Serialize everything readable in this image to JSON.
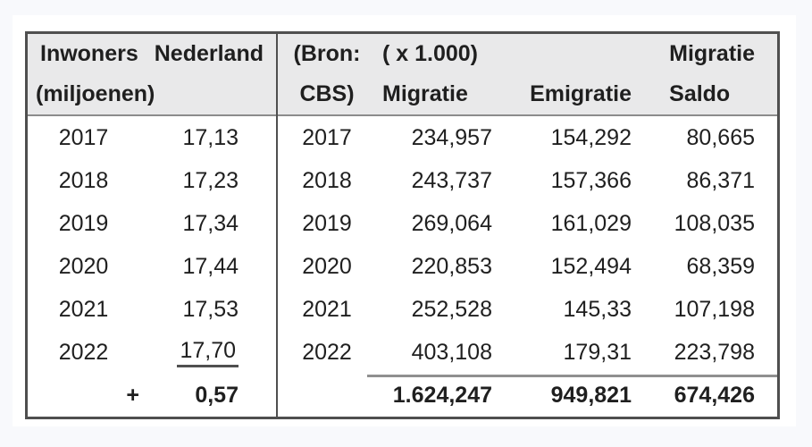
{
  "colors": {
    "page_bg": "#f8f9fc",
    "panel_bg": "#ffffff",
    "header_bg": "#e9e9ea",
    "border": "#4f4f4f",
    "header_rule": "#8c8c8c",
    "sum_rule": "#909090",
    "text": "#1f1f1f"
  },
  "left_table": {
    "header": {
      "line1_left": "Inwoners",
      "line1_right": "Nederland",
      "line2": "(miljoenen)"
    },
    "rows": [
      {
        "year": "2017",
        "value": "17,13"
      },
      {
        "year": "2018",
        "value": "17,23"
      },
      {
        "year": "2019",
        "value": "17,34"
      },
      {
        "year": "2020",
        "value": "17,44"
      },
      {
        "year": "2021",
        "value": "17,53"
      },
      {
        "year": "2022",
        "value": "17,70"
      }
    ],
    "total": {
      "operator": "+",
      "value": "0,57"
    }
  },
  "right_table": {
    "header": {
      "source_line1": "(Bron:",
      "source_line2": "CBS)",
      "unit": "( x 1.000)",
      "migratie_label": "Migratie",
      "emigratie_label": "Emigratie",
      "saldo_line1": "Migratie",
      "saldo_line2": "Saldo"
    },
    "rows": [
      {
        "year": "2017",
        "migratie": "234,957",
        "emigratie": "154,292",
        "saldo": "80,665"
      },
      {
        "year": "2018",
        "migratie": "243,737",
        "emigratie": "157,366",
        "saldo": "86,371"
      },
      {
        "year": "2019",
        "migratie": "269,064",
        "emigratie": "161,029",
        "saldo": "108,035"
      },
      {
        "year": "2020",
        "migratie": "220,853",
        "emigratie": "152,494",
        "saldo": "68,359"
      },
      {
        "year": "2021",
        "migratie": "252,528",
        "emigratie": "145,33",
        "saldo": "107,198"
      },
      {
        "year": "2022",
        "migratie": "403,108",
        "emigratie": "179,31",
        "saldo": "223,798"
      }
    ],
    "totals": {
      "migratie": "1.624,247",
      "emigratie": "949,821",
      "saldo": "674,426"
    }
  }
}
